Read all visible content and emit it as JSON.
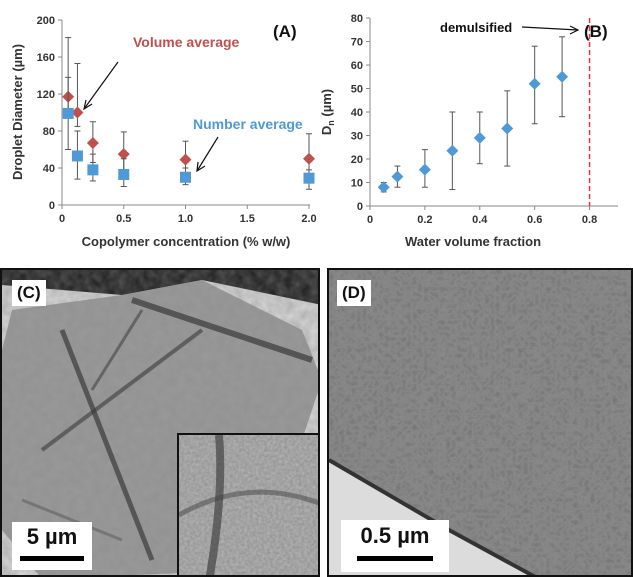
{
  "colors": {
    "volume": "#c0504d",
    "number": "#4f9ad6",
    "vline": "#e03c3c"
  },
  "chart_data": [
    {
      "panel": "(A)",
      "type": "scatter",
      "xlabel": "Copolymer concentration (% w/w)",
      "ylabel": "Droplet Diameter (µm)",
      "xlim": [
        0,
        2.0
      ],
      "ylim": [
        0,
        200
      ],
      "xticks": [
        "0",
        "0.5",
        "1.0",
        "1.5",
        "2.0"
      ],
      "yticks": [
        "0",
        "40",
        "80",
        "120",
        "160",
        "200"
      ],
      "grid": false,
      "series": [
        {
          "name": "Volume average",
          "marker": "diamond",
          "x": [
            0.05,
            0.125,
            0.25,
            0.5,
            1.0,
            2.0
          ],
          "y": [
            117,
            100,
            67,
            55,
            49,
            50
          ],
          "err_low": [
            99,
            85,
            46,
            38,
            32,
            33
          ],
          "err_high": [
            181,
            153,
            90,
            79,
            69,
            77
          ]
        },
        {
          "name": "Number average",
          "marker": "square",
          "x": [
            0.05,
            0.125,
            0.25,
            0.5,
            1.0,
            2.0
          ],
          "y": [
            99,
            53,
            38,
            33,
            30,
            29
          ],
          "err_low": [
            60,
            28,
            26,
            20,
            22,
            17
          ],
          "err_high": [
            138,
            80,
            55,
            50,
            40,
            38
          ]
        }
      ]
    },
    {
      "panel": "(B)",
      "type": "scatter",
      "xlabel": "Water volume fraction",
      "ylabel": "Dn (µm)",
      "xlim": [
        0,
        0.9
      ],
      "ylim": [
        0,
        80
      ],
      "xticks": [
        "0",
        "0.2",
        "0.4",
        "0.6",
        "0.8"
      ],
      "yticks": [
        "0",
        "10",
        "20",
        "30",
        "40",
        "50",
        "60",
        "70",
        "80"
      ],
      "grid": false,
      "annotation": "demulsified",
      "vline_x": 0.8,
      "series": [
        {
          "marker": "diamond",
          "x": [
            0.05,
            0.1,
            0.2,
            0.3,
            0.4,
            0.5,
            0.6,
            0.7
          ],
          "y": [
            8,
            12.5,
            15.5,
            23.5,
            29,
            33,
            52,
            55
          ],
          "err_low": [
            6,
            8,
            8,
            7,
            18,
            17,
            35,
            38
          ],
          "err_high": [
            10,
            17,
            24,
            40,
            40,
            49,
            68,
            72
          ]
        }
      ]
    }
  ],
  "micrographs": [
    {
      "label": "(C)",
      "scale": "5 µm"
    },
    {
      "label": "(D)",
      "scale": "0.5 µm"
    }
  ]
}
